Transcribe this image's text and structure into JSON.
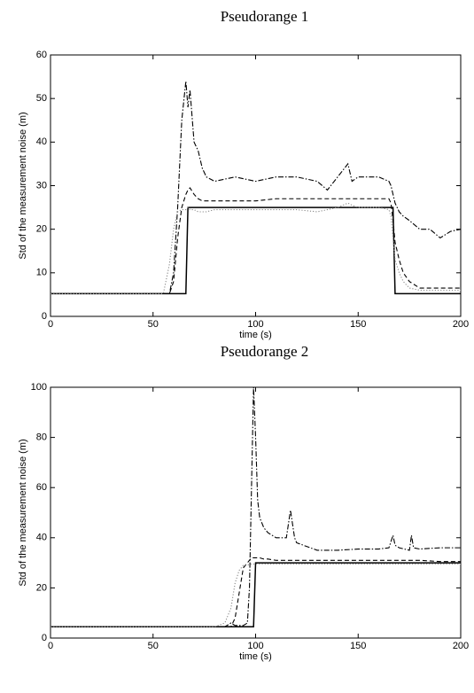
{
  "chart_data": [
    {
      "type": "line",
      "title": "Pseudorange 1",
      "xlabel": "time (s)",
      "ylabel": "Std of the measurement noise (m)",
      "x": [
        0,
        10,
        20,
        30,
        40,
        50,
        55,
        58,
        60,
        62,
        64,
        66,
        67,
        68,
        70,
        72,
        74,
        76,
        80,
        90,
        100,
        110,
        120,
        130,
        135,
        140,
        145,
        147,
        150,
        160,
        165,
        166,
        167,
        168,
        170,
        172,
        175,
        180,
        185,
        190,
        195,
        200
      ],
      "series": [
        {
          "color": "#000000",
          "dash": "solid",
          "values": [
            5.2,
            5.2,
            5.2,
            5.2,
            5.2,
            5.2,
            5.2,
            5.2,
            5.2,
            5.2,
            5.2,
            5.2,
            25,
            25,
            25,
            25,
            25,
            25,
            25,
            25,
            25,
            25,
            25,
            25,
            25,
            25,
            25,
            25,
            25,
            25,
            25,
            25,
            25,
            5.2,
            5.2,
            5.2,
            5.2,
            5.2,
            5.2,
            5.2,
            5.2,
            5.2
          ]
        },
        {
          "color": "#000000",
          "dash": "dashdot",
          "values": [
            5.2,
            5.2,
            5.2,
            5.2,
            5.2,
            5.2,
            5.2,
            5.2,
            10,
            25,
            45,
            54,
            48,
            52,
            40,
            38,
            34,
            32,
            31,
            32,
            31,
            32,
            32,
            31,
            29,
            32,
            35,
            31,
            32,
            32,
            31,
            30,
            28,
            26,
            24,
            23,
            22,
            20,
            20,
            18,
            19.5,
            20
          ]
        },
        {
          "color": "#000000",
          "dash": "dashed",
          "values": [
            5.2,
            5.2,
            5.2,
            5.2,
            5.2,
            5.2,
            5.2,
            5.2,
            8,
            18,
            25,
            28,
            29,
            29.5,
            28,
            27,
            26.5,
            26.5,
            26.5,
            26.5,
            26.5,
            27,
            27,
            27,
            27,
            27,
            27,
            27,
            27,
            27,
            27,
            26,
            22,
            17,
            13,
            10,
            8,
            6.5,
            6.5,
            6.5,
            6.5,
            6.5
          ]
        },
        {
          "color": "#888888",
          "dash": "dotted",
          "values": [
            5.2,
            5.2,
            5.2,
            5.2,
            5.2,
            5.2,
            5.2,
            12,
            20,
            24,
            24.5,
            24.5,
            25,
            24.5,
            24.5,
            24,
            24,
            24,
            24.5,
            24.5,
            24.5,
            24.5,
            24.5,
            24,
            24.5,
            25,
            26,
            25.5,
            25,
            25,
            24.5,
            23,
            18,
            13,
            10,
            8,
            6.5,
            6,
            6,
            6,
            6,
            6
          ]
        }
      ],
      "xlim": [
        0,
        200
      ],
      "xticks": [
        0,
        50,
        100,
        150,
        200
      ],
      "ylim": [
        0,
        60
      ],
      "yticks": [
        0,
        10,
        20,
        30,
        40,
        50,
        60
      ],
      "grid": false
    },
    {
      "type": "line",
      "title": "Pseudorange 2",
      "xlabel": "time (s)",
      "ylabel": "Std of the measurement noise (m)",
      "x": [
        0,
        10,
        20,
        30,
        40,
        50,
        60,
        70,
        80,
        85,
        88,
        90,
        92,
        94,
        96,
        97,
        98,
        99,
        100,
        101,
        102,
        104,
        106,
        110,
        115,
        117,
        119,
        120,
        130,
        140,
        150,
        160,
        165,
        167,
        168,
        170,
        175,
        176,
        177,
        180,
        190,
        200
      ],
      "series": [
        {
          "color": "#000000",
          "dash": "solid",
          "values": [
            4.5,
            4.5,
            4.5,
            4.5,
            4.5,
            4.5,
            4.5,
            4.5,
            4.5,
            4.5,
            4.5,
            4.5,
            4.5,
            4.5,
            4.5,
            4.5,
            4.5,
            4.5,
            30,
            30,
            30,
            30,
            30,
            30,
            30,
            30,
            30,
            30,
            30,
            30,
            30,
            30,
            30,
            30,
            30,
            30,
            30,
            30,
            30,
            30,
            30,
            30
          ]
        },
        {
          "color": "#000000",
          "dash": "dashdot",
          "values": [
            4.5,
            4.5,
            4.5,
            4.5,
            4.5,
            4.5,
            4.5,
            4.5,
            4.5,
            4.5,
            6,
            5,
            5,
            5,
            6,
            20,
            60,
            100,
            80,
            55,
            48,
            44,
            42,
            40,
            40,
            51,
            40,
            38,
            35,
            35,
            35.5,
            35.5,
            36,
            41,
            37,
            36,
            35,
            41,
            36,
            35.5,
            36,
            36
          ]
        },
        {
          "color": "#000000",
          "dash": "dashed",
          "values": [
            4.5,
            4.5,
            4.5,
            4.5,
            4.5,
            4.5,
            4.5,
            4.5,
            4.5,
            4.5,
            4.5,
            8,
            18,
            28,
            30,
            31,
            32,
            32,
            32,
            32,
            32,
            31.5,
            31.5,
            31,
            31,
            31,
            31,
            31,
            31,
            31,
            31,
            31,
            31,
            31,
            31,
            31,
            31,
            31,
            31,
            31,
            30.5,
            30.5
          ]
        },
        {
          "color": "#888888",
          "dash": "dotted",
          "values": [
            4.5,
            4.5,
            4.5,
            4.5,
            4.5,
            4.5,
            4.5,
            4.5,
            4.5,
            6,
            12,
            22,
            27,
            29,
            29,
            29.5,
            29.5,
            29.5,
            29.5,
            29.5,
            29.5,
            29.5,
            29.5,
            29.5,
            29.5,
            29.5,
            29.5,
            29.5,
            29.5,
            29.5,
            29.5,
            29.5,
            29.5,
            29.5,
            29.5,
            29.5,
            29.5,
            29.5,
            29.5,
            29.5,
            29.5,
            29.5
          ]
        }
      ],
      "xlim": [
        0,
        200
      ],
      "xticks": [
        0,
        50,
        100,
        150,
        200
      ],
      "ylim": [
        0,
        100
      ],
      "yticks": [
        0,
        20,
        40,
        60,
        80,
        100
      ],
      "grid": false
    }
  ]
}
